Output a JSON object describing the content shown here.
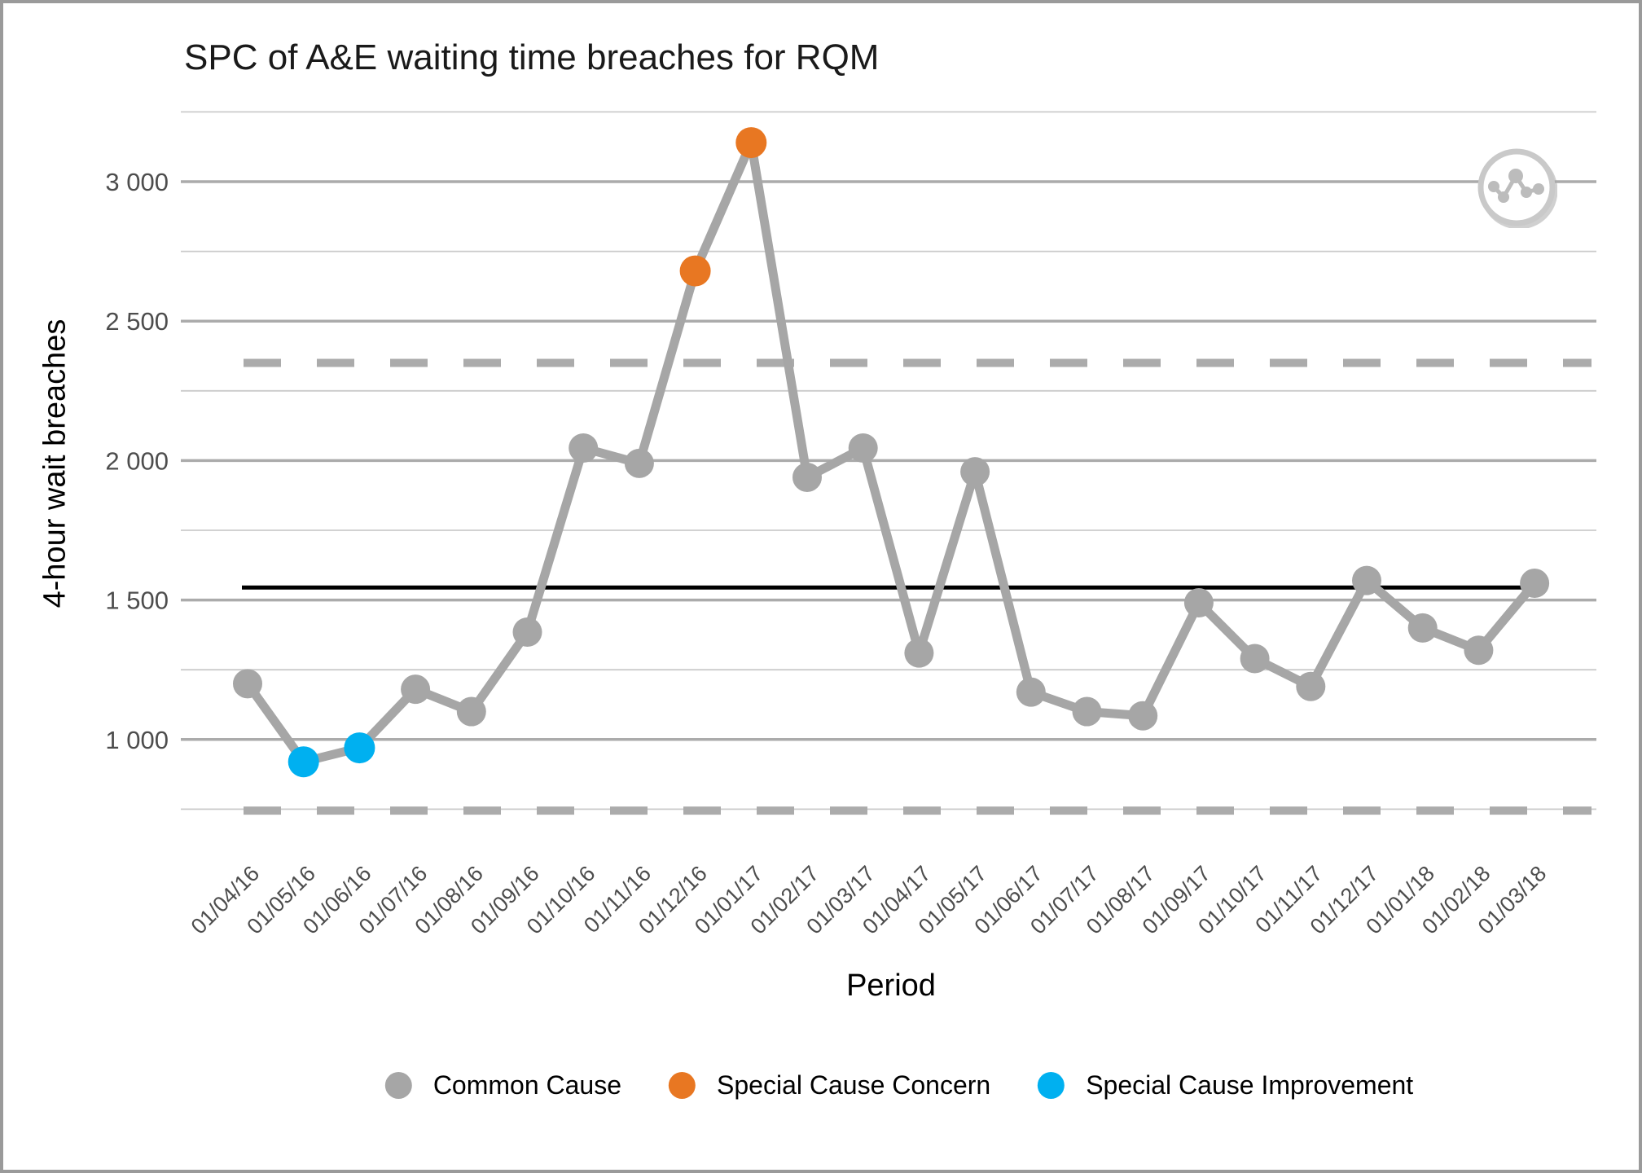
{
  "title": "SPC of A&E waiting time breaches for RQM",
  "y_axis": {
    "label": "4-hour wait breaches"
  },
  "x_axis": {
    "label": "Period"
  },
  "legend": {
    "items": [
      {
        "label": "Common Cause",
        "color": "#A6A6A6",
        "category": "common"
      },
      {
        "label": "Special Cause Concern",
        "color": "#E87722",
        "category": "concern"
      },
      {
        "label": "Special Cause Improvement",
        "color": "#00B0F0",
        "category": "improvement"
      }
    ]
  },
  "icons": {
    "watermark": "line-chart-badge"
  },
  "colors": {
    "common": "#A6A6A6",
    "concern": "#E87722",
    "improvement": "#00B0F0",
    "mean_line": "#000000",
    "limit_line": "#ABABAB",
    "grid_major": "#ABABAB",
    "grid_minor": "#CBCBCB",
    "tick_text": "#4d4d4d"
  },
  "chart_data": {
    "type": "line",
    "title": "SPC of A&E waiting time breaches for RQM",
    "xlabel": "Period",
    "ylabel": "4-hour wait breaches",
    "x": [
      "01/04/16",
      "01/05/16",
      "01/06/16",
      "01/07/16",
      "01/08/16",
      "01/09/16",
      "01/10/16",
      "01/11/16",
      "01/12/16",
      "01/01/17",
      "01/02/17",
      "01/03/17",
      "01/04/17",
      "01/05/17",
      "01/06/17",
      "01/07/17",
      "01/08/17",
      "01/09/17",
      "01/10/17",
      "01/11/17",
      "01/12/17",
      "01/01/18",
      "01/02/18",
      "01/03/18"
    ],
    "series": [
      {
        "name": "4-hour wait breaches",
        "values": [
          1200,
          920,
          970,
          1180,
          1100,
          1385,
          2045,
          1990,
          2680,
          3140,
          1940,
          2045,
          1310,
          1960,
          1170,
          1100,
          1085,
          1490,
          1290,
          1190,
          1570,
          1400,
          1320,
          1560
        ]
      }
    ],
    "point_categories": [
      "common",
      "improvement",
      "improvement",
      "common",
      "common",
      "common",
      "common",
      "common",
      "concern",
      "concern",
      "common",
      "common",
      "common",
      "common",
      "common",
      "common",
      "common",
      "common",
      "common",
      "common",
      "common",
      "common",
      "common",
      "common"
    ],
    "control_limits": {
      "mean": 1545,
      "ucl": 2350,
      "lcl": 745,
      "mean_style": "solid black",
      "limit_style": "dashed grey"
    },
    "ylim": [
      600,
      3260
    ],
    "yticks": [
      1000,
      1500,
      2000,
      2500,
      3000
    ],
    "ytick_labels": [
      "1 000",
      "1 500",
      "2 000",
      "2 500",
      "3 000"
    ],
    "yticks_minor": [
      750,
      1250,
      1750,
      2250,
      2750,
      3250
    ],
    "grid": "horizontal only, minor every 250",
    "legend_position": "bottom"
  }
}
